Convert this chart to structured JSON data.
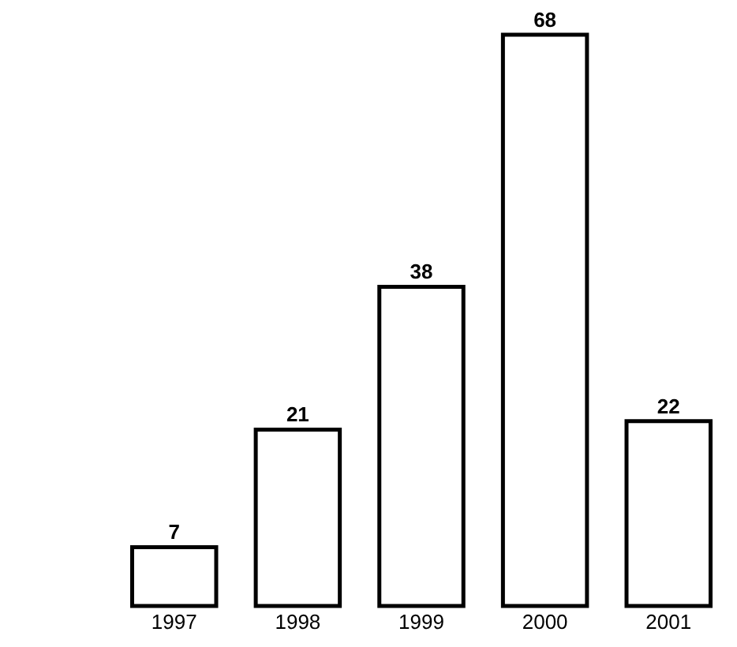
{
  "chart_data": {
    "type": "bar",
    "categories": [
      "1997",
      "1998",
      "1999",
      "2000",
      "2001"
    ],
    "values": [
      7,
      21,
      38,
      68,
      22
    ],
    "color": "#ffffff",
    "data_labels": true
  }
}
